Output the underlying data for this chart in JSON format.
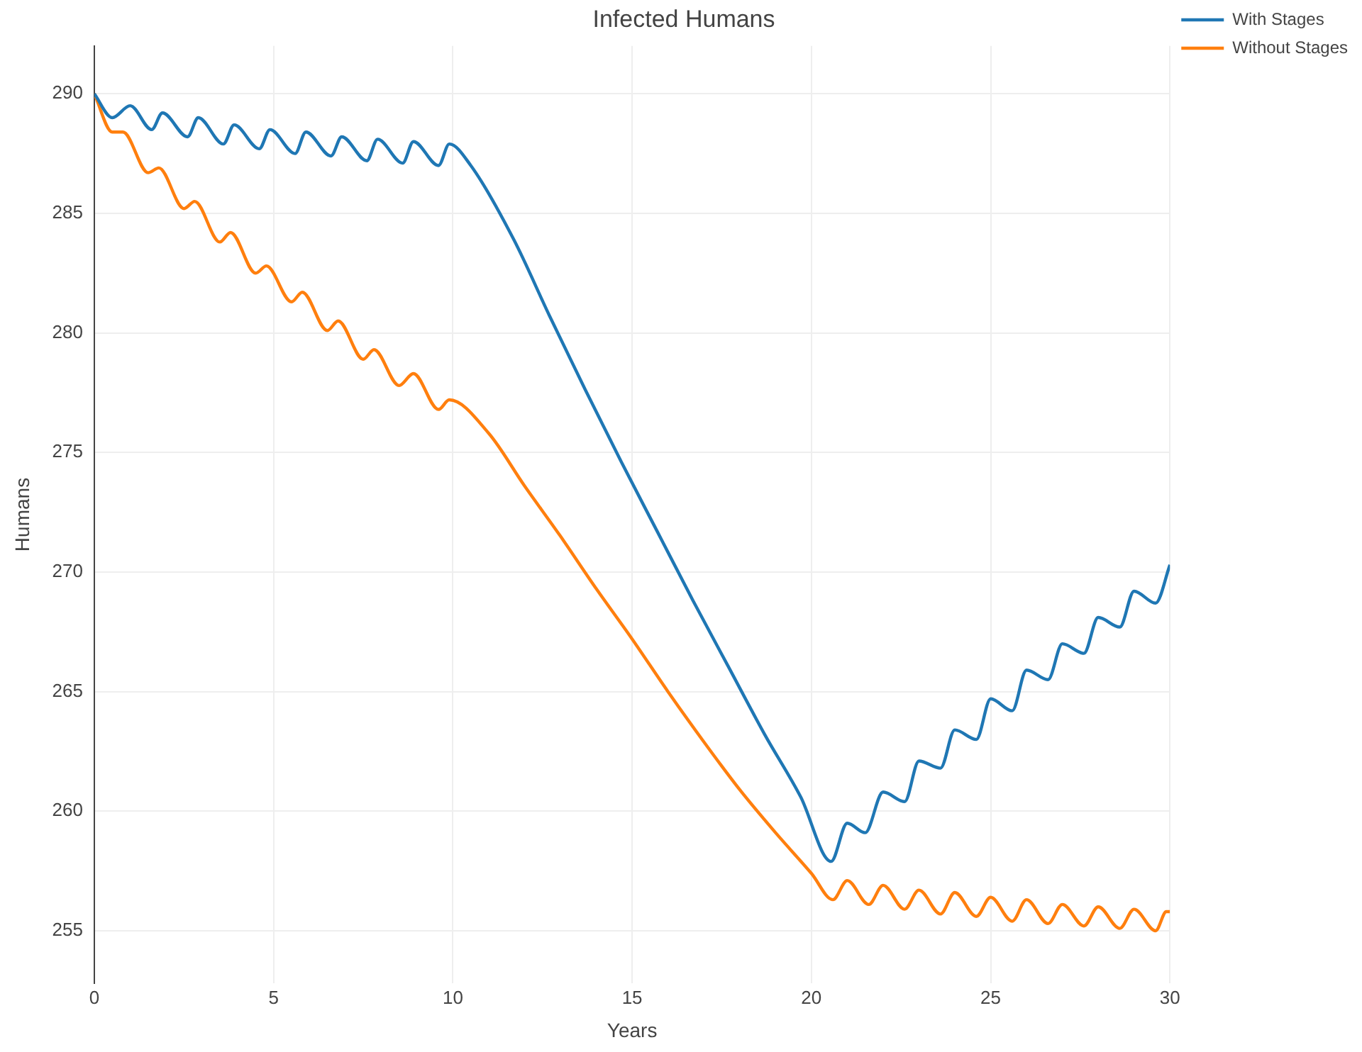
{
  "chart_data": {
    "type": "line",
    "title": "Infected Humans",
    "xlabel": "Years",
    "ylabel": "Humans",
    "xlim": [
      0,
      30
    ],
    "xticks": [
      0,
      5,
      10,
      15,
      20,
      25,
      30
    ],
    "ylim": [
      252.8,
      292
    ],
    "yticks": [
      255,
      260,
      265,
      270,
      275,
      280,
      285,
      290
    ],
    "grid": true,
    "legend": "top right",
    "marker": "none",
    "line_style": "solid",
    "series": [
      {
        "name": "With Stages",
        "color": "#1f77b4",
        "x": [
          0,
          0.5,
          1.0,
          1.6,
          1.9,
          2.6,
          2.9,
          3.6,
          3.9,
          4.6,
          4.9,
          5.6,
          5.9,
          6.6,
          6.9,
          7.6,
          7.9,
          8.6,
          8.9,
          9.6,
          9.9,
          10.5,
          11.7,
          12.7,
          13.7,
          14.7,
          15.7,
          16.7,
          17.7,
          18.7,
          19.7,
          20.55,
          21.0,
          21.5,
          22.0,
          22.6,
          23.0,
          23.6,
          24.0,
          24.6,
          25.0,
          25.6,
          26.0,
          26.6,
          27.0,
          27.6,
          28.0,
          28.6,
          29.0,
          29.6,
          30
        ],
        "values": [
          290,
          289.0,
          289.5,
          288.5,
          289.2,
          288.2,
          289.0,
          287.9,
          288.7,
          287.7,
          288.5,
          287.5,
          288.4,
          287.4,
          288.2,
          287.2,
          288.1,
          287.1,
          288.0,
          287.0,
          287.9,
          287.0,
          283.9,
          280.7,
          277.6,
          274.6,
          271.7,
          268.8,
          266.0,
          263.2,
          260.6,
          257.9,
          259.5,
          259.1,
          260.8,
          260.4,
          262.1,
          261.8,
          263.4,
          263.0,
          264.7,
          264.2,
          265.9,
          265.5,
          267.0,
          266.6,
          268.1,
          267.7,
          269.2,
          268.7,
          270.3
        ]
      },
      {
        "name": "Without Stages",
        "color": "#ff7f0e",
        "x": [
          0,
          0.5,
          0.8,
          1.5,
          1.8,
          2.5,
          2.8,
          3.5,
          3.8,
          4.5,
          4.8,
          5.5,
          5.8,
          6.5,
          6.8,
          7.5,
          7.8,
          8.5,
          8.9,
          9.6,
          9.9,
          11,
          12,
          13,
          14,
          15,
          16,
          17,
          18,
          19,
          20,
          20.6,
          21.0,
          21.6,
          22.0,
          22.6,
          23.0,
          23.6,
          24.0,
          24.6,
          25.0,
          25.6,
          26.0,
          26.6,
          27.0,
          27.6,
          28.0,
          28.6,
          29.0,
          29.6,
          29.9,
          30
        ],
        "values": [
          290,
          288.4,
          288.4,
          286.7,
          286.9,
          285.2,
          285.5,
          283.8,
          284.2,
          282.5,
          282.8,
          281.3,
          281.7,
          280.1,
          280.5,
          278.9,
          279.3,
          277.8,
          278.3,
          276.8,
          277.2,
          275.8,
          273.6,
          271.5,
          269.3,
          267.2,
          265.0,
          262.9,
          260.9,
          259.1,
          257.4,
          256.3,
          257.1,
          256.1,
          256.9,
          255.9,
          256.7,
          255.7,
          256.6,
          255.6,
          256.4,
          255.4,
          256.3,
          255.3,
          256.1,
          255.2,
          256.0,
          255.1,
          255.9,
          255.0,
          255.8,
          255.8
        ]
      }
    ]
  }
}
